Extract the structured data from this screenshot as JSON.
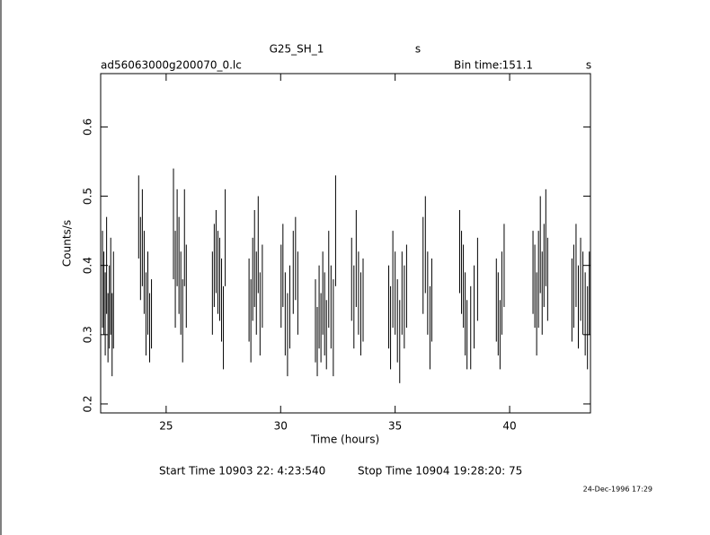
{
  "chart_data": {
    "type": "errorbar",
    "title": "G25_SH_1",
    "title_unit": "s",
    "file_name": "ad56063000g200070_0.lc",
    "bin_time_label": "Bin time:",
    "bin_time": "151.1",
    "bin_time_unit": "s",
    "xlabel": "Time (hours)",
    "ylabel": "Counts/s",
    "start_time": "Start Time 10903 22: 4:23:540",
    "stop_time": "Stop Time 10904 19:28:20: 75",
    "date_stamp": "24-Dec-1996 17:29",
    "color": "#000000",
    "xlim": [
      22.14,
      43.53
    ],
    "xticks": [
      25,
      30,
      35,
      40
    ],
    "ylim": [
      0.187,
      0.677
    ],
    "yticks": [
      0.2,
      0.3,
      0.4,
      0.5,
      0.6
    ],
    "x": [
      22.22,
      22.28,
      22.34,
      22.4,
      22.46,
      22.52,
      22.58,
      22.64,
      22.7,
      23.8,
      23.88,
      23.96,
      24.04,
      24.12,
      24.2,
      24.28,
      24.36,
      25.32,
      25.4,
      25.48,
      25.56,
      25.64,
      25.72,
      25.8,
      25.88,
      27.02,
      27.1,
      27.18,
      27.26,
      27.34,
      27.42,
      27.5,
      27.58,
      28.62,
      28.7,
      28.78,
      28.86,
      28.94,
      29.02,
      29.1,
      29.2,
      30.02,
      30.1,
      30.2,
      30.3,
      30.4,
      30.55,
      30.65,
      30.75,
      31.52,
      31.6,
      31.68,
      31.76,
      31.84,
      31.92,
      32.0,
      32.1,
      32.2,
      32.3,
      32.4,
      33.1,
      33.2,
      33.3,
      33.4,
      33.5,
      33.6,
      34.72,
      34.8,
      34.9,
      35.0,
      35.1,
      35.2,
      35.3,
      35.4,
      35.5,
      36.22,
      36.32,
      36.42,
      36.52,
      36.6,
      37.82,
      37.9,
      37.98,
      38.06,
      38.14,
      38.3,
      38.45,
      38.6,
      39.42,
      39.5,
      39.58,
      39.66,
      39.76,
      41.02,
      41.1,
      41.18,
      41.26,
      41.34,
      41.42,
      41.5,
      41.58,
      41.66,
      42.72,
      42.8,
      42.9,
      43.0,
      43.1,
      43.2,
      43.3,
      43.4,
      43.48
    ],
    "values": [
      0.38,
      0.36,
      0.33,
      0.4,
      0.31,
      0.34,
      0.37,
      0.3,
      0.35,
      0.47,
      0.41,
      0.44,
      0.39,
      0.33,
      0.36,
      0.31,
      0.33,
      0.46,
      0.38,
      0.44,
      0.4,
      0.36,
      0.32,
      0.44,
      0.37,
      0.36,
      0.4,
      0.42,
      0.39,
      0.38,
      0.35,
      0.31,
      0.44,
      0.35,
      0.32,
      0.38,
      0.41,
      0.36,
      0.43,
      0.33,
      0.37,
      0.37,
      0.4,
      0.33,
      0.3,
      0.34,
      0.39,
      0.41,
      0.36,
      0.32,
      0.29,
      0.34,
      0.31,
      0.36,
      0.33,
      0.3,
      0.38,
      0.34,
      0.31,
      0.45,
      0.38,
      0.34,
      0.41,
      0.36,
      0.33,
      0.35,
      0.34,
      0.31,
      0.38,
      0.36,
      0.32,
      0.29,
      0.36,
      0.34,
      0.37,
      0.4,
      0.43,
      0.36,
      0.31,
      0.35,
      0.42,
      0.39,
      0.37,
      0.33,
      0.3,
      0.31,
      0.34,
      0.38,
      0.35,
      0.33,
      0.3,
      0.36,
      0.4,
      0.39,
      0.37,
      0.33,
      0.38,
      0.43,
      0.36,
      0.4,
      0.44,
      0.38,
      0.35,
      0.37,
      0.4,
      0.34,
      0.38,
      0.36,
      0.33,
      0.31,
      0.36
    ],
    "errors": [
      0.07,
      0.06,
      0.06,
      0.07,
      0.05,
      0.06,
      0.07,
      0.06,
      0.07,
      0.06,
      0.06,
      0.07,
      0.06,
      0.06,
      0.06,
      0.05,
      0.05,
      0.08,
      0.07,
      0.07,
      0.07,
      0.06,
      0.06,
      0.07,
      0.06,
      0.06,
      0.06,
      0.06,
      0.06,
      0.06,
      0.06,
      0.06,
      0.07,
      0.06,
      0.06,
      0.06,
      0.07,
      0.06,
      0.07,
      0.06,
      0.06,
      0.06,
      0.06,
      0.06,
      0.06,
      0.06,
      0.06,
      0.06,
      0.06,
      0.06,
      0.05,
      0.06,
      0.05,
      0.06,
      0.06,
      0.05,
      0.07,
      0.06,
      0.07,
      0.08,
      0.06,
      0.06,
      0.07,
      0.06,
      0.06,
      0.06,
      0.06,
      0.06,
      0.07,
      0.06,
      0.06,
      0.06,
      0.06,
      0.06,
      0.06,
      0.07,
      0.07,
      0.06,
      0.06,
      0.06,
      0.06,
      0.06,
      0.06,
      0.06,
      0.05,
      0.06,
      0.06,
      0.06,
      0.06,
      0.06,
      0.05,
      0.06,
      0.06,
      0.06,
      0.06,
      0.06,
      0.07,
      0.07,
      0.06,
      0.06,
      0.07,
      0.06,
      0.06,
      0.06,
      0.06,
      0.06,
      0.06,
      0.06,
      0.06,
      0.06,
      0.06
    ]
  }
}
